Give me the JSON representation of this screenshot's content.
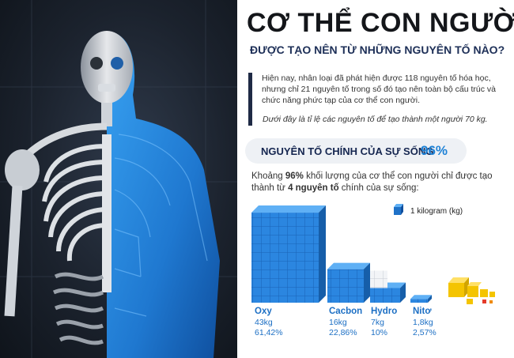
{
  "header": {
    "title": "CƠ THỂ CON NGƯỜI",
    "subtitle": "ĐƯỢC TẠO NÊN TỪ NHỮNG NGUYÊN TỐ NÀO?"
  },
  "intro": {
    "text": "Hiện nay, nhân loại đã phát hiện được 118 nguyên tố hóa học, nhưng chỉ 21 nguyên tố trong số đó tạo nên toàn bộ cấu trúc và chức năng phức tạp của cơ thể con người.",
    "note": "Dưới đây là tỉ lệ các nguyên tố để tạo thành một người 70 kg."
  },
  "main_section": {
    "label": "NGUYÊN TỐ CHÍNH CỦA SỰ SỐNG",
    "percent": "96%",
    "description_pre": "Khoảng ",
    "description_bold1": "96%",
    "description_mid": " khối lượng của cơ thể con người chỉ được tạo thành từ ",
    "description_bold2": "4 nguyên tố",
    "description_post": " chính của sự sống:"
  },
  "legend": {
    "label": "1 kilogram (kg)"
  },
  "colors": {
    "accent": "#1e82d6",
    "dark_navy": "#1d2f57",
    "cube_blue": "#2b86e0",
    "cube_white": "#f2f4f7",
    "cube_yellow": "#f4c400"
  },
  "chart_data": {
    "type": "bar",
    "categories": [
      "Oxy",
      "Cacbon",
      "Hydro",
      "Nitơ"
    ],
    "mass_kg": [
      43,
      16,
      7,
      1.8
    ],
    "mass_labels": [
      "43kg",
      "16kg",
      "7kg",
      "1,8kg"
    ],
    "percent_labels": [
      "61,42%",
      "22,86%",
      "10%",
      "2,57%"
    ]
  }
}
